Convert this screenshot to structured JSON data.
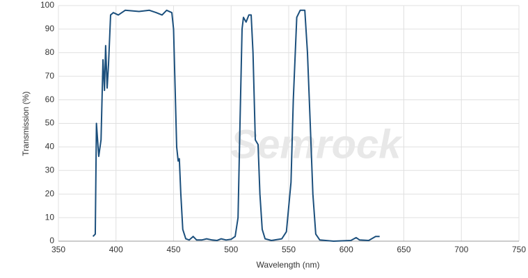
{
  "chart_data": {
    "type": "line",
    "x_label": "Wavelength (nm)",
    "y_label": "Transmission (%)",
    "watermark": "Semrock",
    "x": [
      380,
      382,
      383,
      385,
      387,
      388.7,
      390,
      391,
      392.3,
      393.5,
      395.3,
      397.7,
      402,
      408,
      420,
      429,
      435,
      440,
      444,
      448.5,
      450,
      452.7,
      454,
      455,
      456.3,
      458,
      460.6,
      463.6,
      467,
      470,
      474.5,
      478.7,
      483.5,
      487.8,
      491.4,
      495.6,
      500,
      503.5,
      506,
      507.7,
      509.5,
      510.7,
      513,
      515.4,
      517.4,
      519,
      521,
      523.4,
      525,
      527,
      529.5,
      535,
      544,
      548,
      552,
      554,
      557,
      560,
      564,
      566.3,
      568.7,
      571,
      573.5,
      577,
      589,
      604,
      608.6,
      611.6,
      619.5,
      625.5,
      629
    ],
    "series": [
      {
        "name": "Transmission",
        "color": "#1b4f7c",
        "values": [
          2,
          3,
          50,
          36,
          43,
          77,
          64,
          83,
          65,
          75,
          96,
          97,
          96,
          98,
          97.5,
          98,
          97,
          96,
          98,
          97,
          90,
          40,
          34,
          35,
          20,
          5,
          1,
          0.5,
          2,
          0.5,
          0.5,
          1,
          0.5,
          0.3,
          1,
          0.5,
          0.8,
          2,
          10,
          50,
          90,
          95,
          93,
          96,
          96,
          80,
          43,
          41,
          20,
          5,
          1,
          0.3,
          1,
          4,
          25,
          60,
          95,
          98,
          98,
          80,
          50,
          20,
          3,
          0.5,
          0,
          0.3,
          1.5,
          0.5,
          0.3,
          2,
          2
        ]
      }
    ],
    "xlim": [
      350,
      750
    ],
    "xticks": [
      350,
      400,
      450,
      500,
      550,
      600,
      650,
      700,
      750
    ],
    "ylim": [
      0,
      100
    ],
    "yticks": [
      0,
      10,
      20,
      30,
      40,
      50,
      60,
      70,
      80,
      90,
      100
    ],
    "grid": true
  }
}
